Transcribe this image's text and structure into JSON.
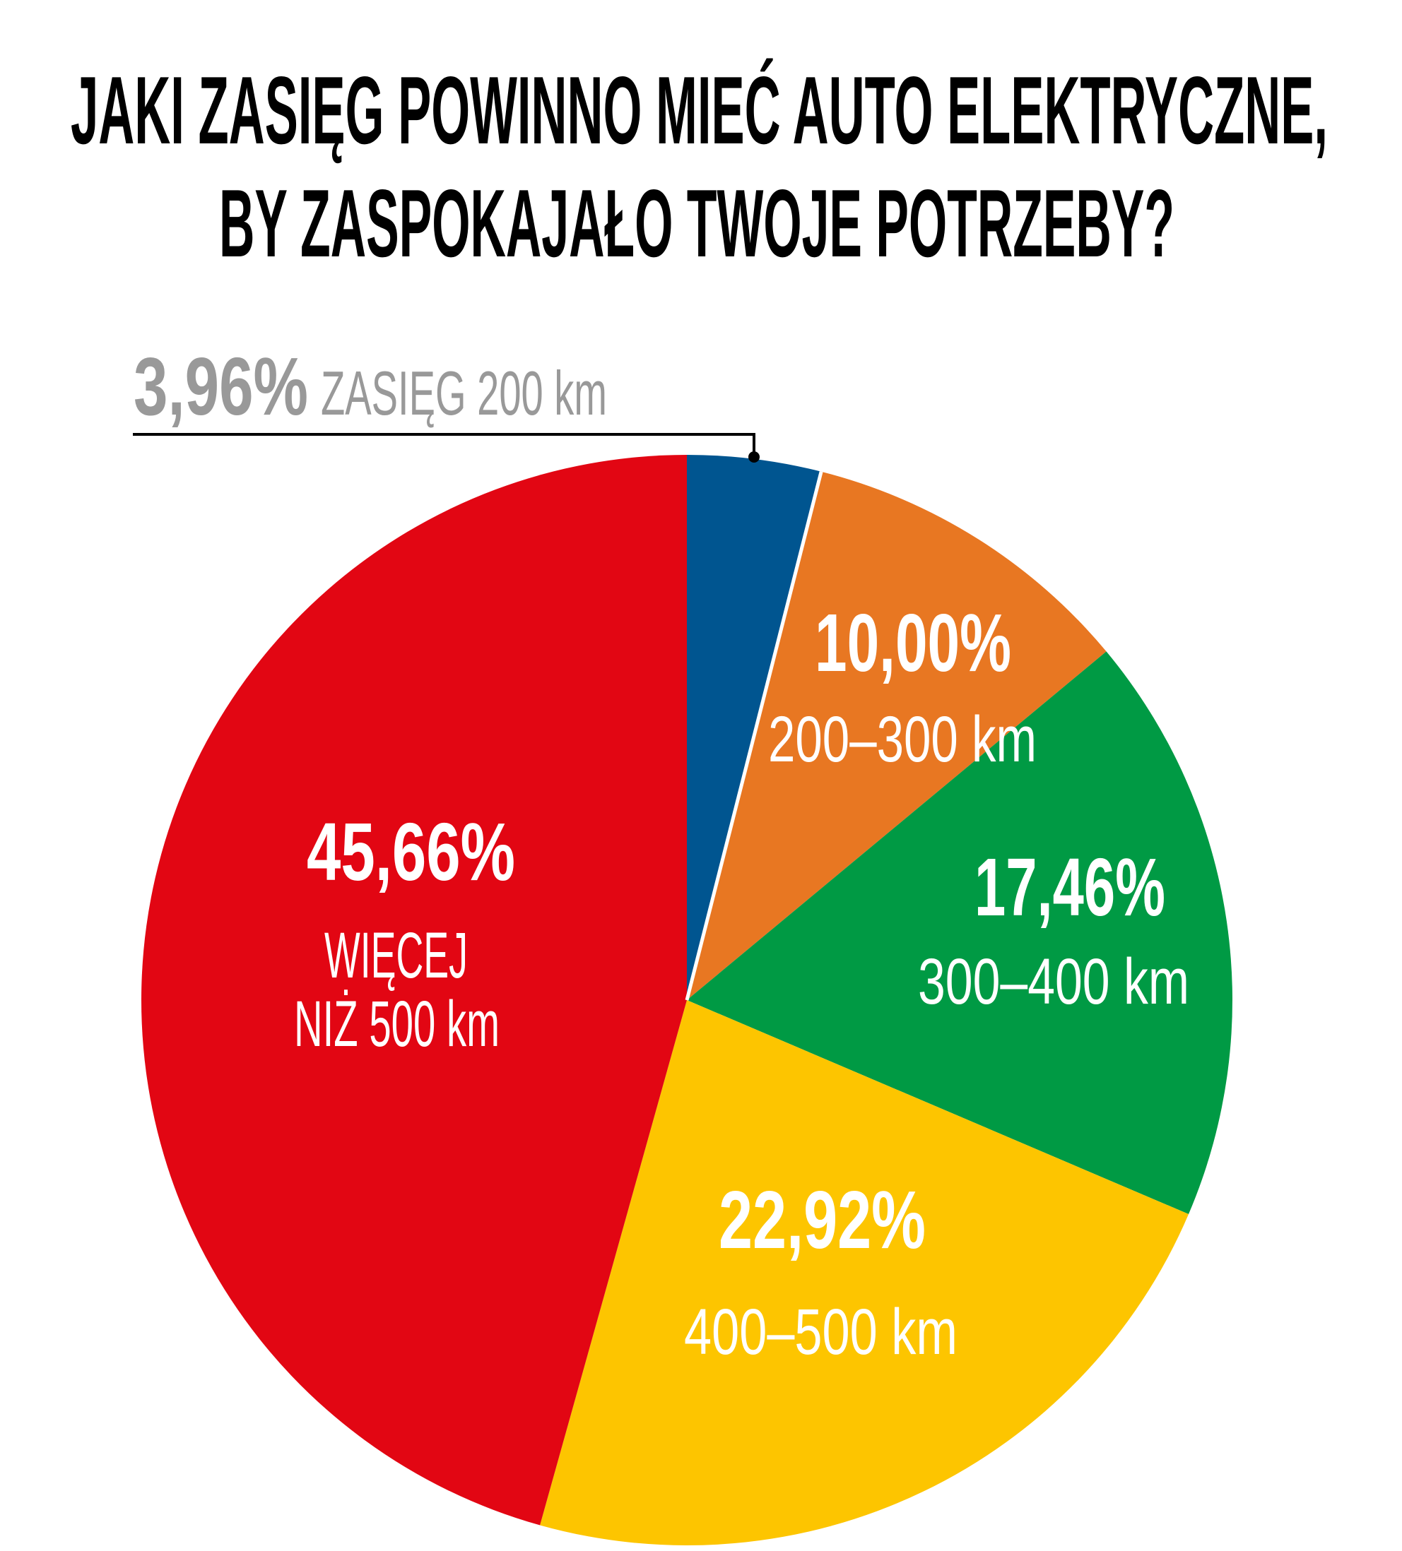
{
  "chart_data": {
    "type": "pie",
    "title": "JAKI ZASIĘG POWINNO MIEĆ AUTO ELEKTRYCZNE, BY ZASPOKAJAŁO TWOJE POTRZEBY?",
    "title_lines": [
      "JAKI ZASIĘG POWINNO MIEĆ AUTO ELEKTRYCZNE,",
      "BY ZASPOKAJAŁO TWOJE POTRZEBY?"
    ],
    "start": "top",
    "direction": "clockwise",
    "slices": [
      {
        "label": "ZASIĘG 200 km",
        "value": 3.96,
        "value_label": "3,96%",
        "color": "#005590"
      },
      {
        "label": "200–300 km",
        "value": 10.0,
        "value_label": "10,00%",
        "color": "#E87722"
      },
      {
        "label": "300–400 km",
        "value": 17.46,
        "value_label": "17,46%",
        "color": "#009A44"
      },
      {
        "label": "400–500 km",
        "value": 22.92,
        "value_label": "22,92%",
        "color": "#FDC500"
      },
      {
        "label_lines": [
          "WIĘCEJ",
          "NIŻ 500 km"
        ],
        "value": 45.66,
        "value_label": "45,66%",
        "color": "#E20613"
      }
    ]
  }
}
